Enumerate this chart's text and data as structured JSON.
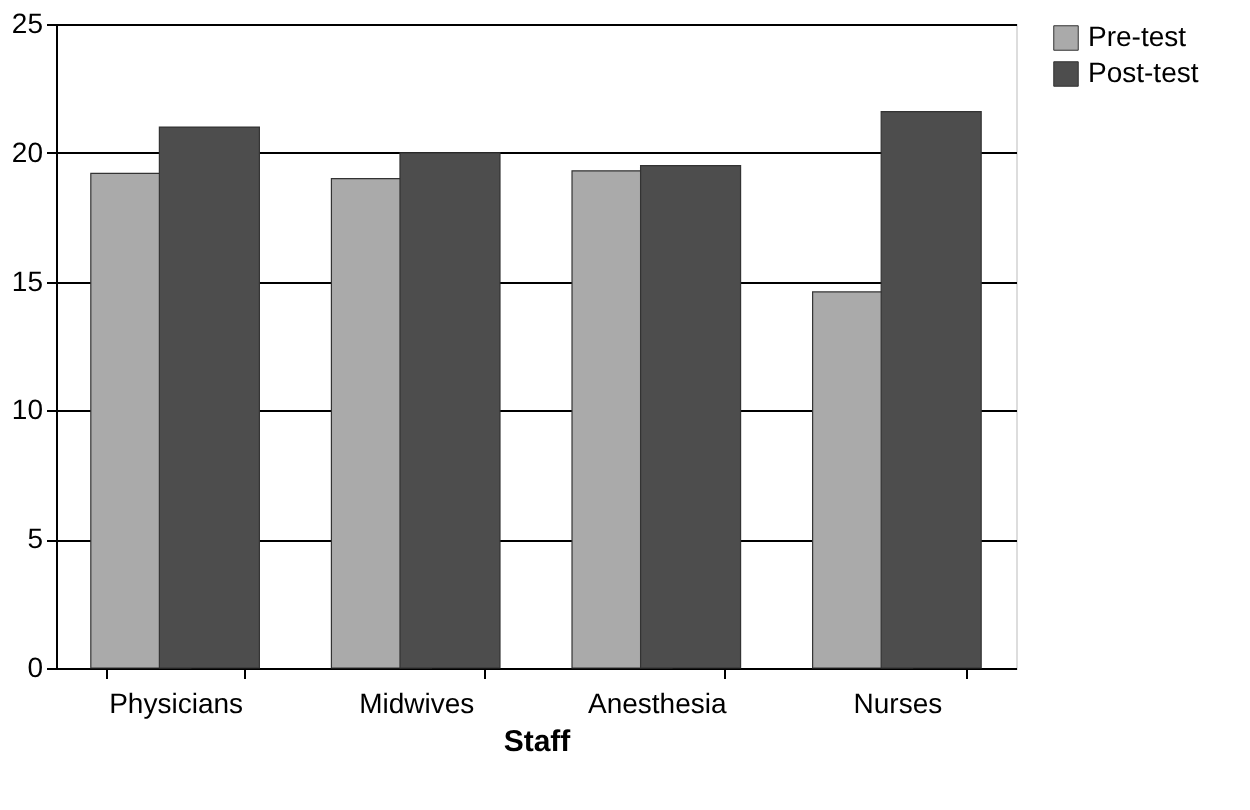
{
  "chart_data": {
    "type": "bar",
    "xlabel": "Staff",
    "categories": [
      "Physicians",
      "Midwives",
      "Anesthesia",
      "Nurses"
    ],
    "series": [
      {
        "name": "Pre-test",
        "color": "#aaaaaa",
        "values": [
          19.2,
          19.0,
          19.3,
          14.6
        ]
      },
      {
        "name": "Post-test",
        "color": "#4d4d4d",
        "values": [
          21.0,
          20.0,
          19.5,
          21.6
        ]
      }
    ],
    "ylim": [
      0,
      25
    ],
    "yticks": [
      0,
      5,
      10,
      15,
      20,
      25
    ],
    "grid": "y",
    "legend": "right"
  }
}
